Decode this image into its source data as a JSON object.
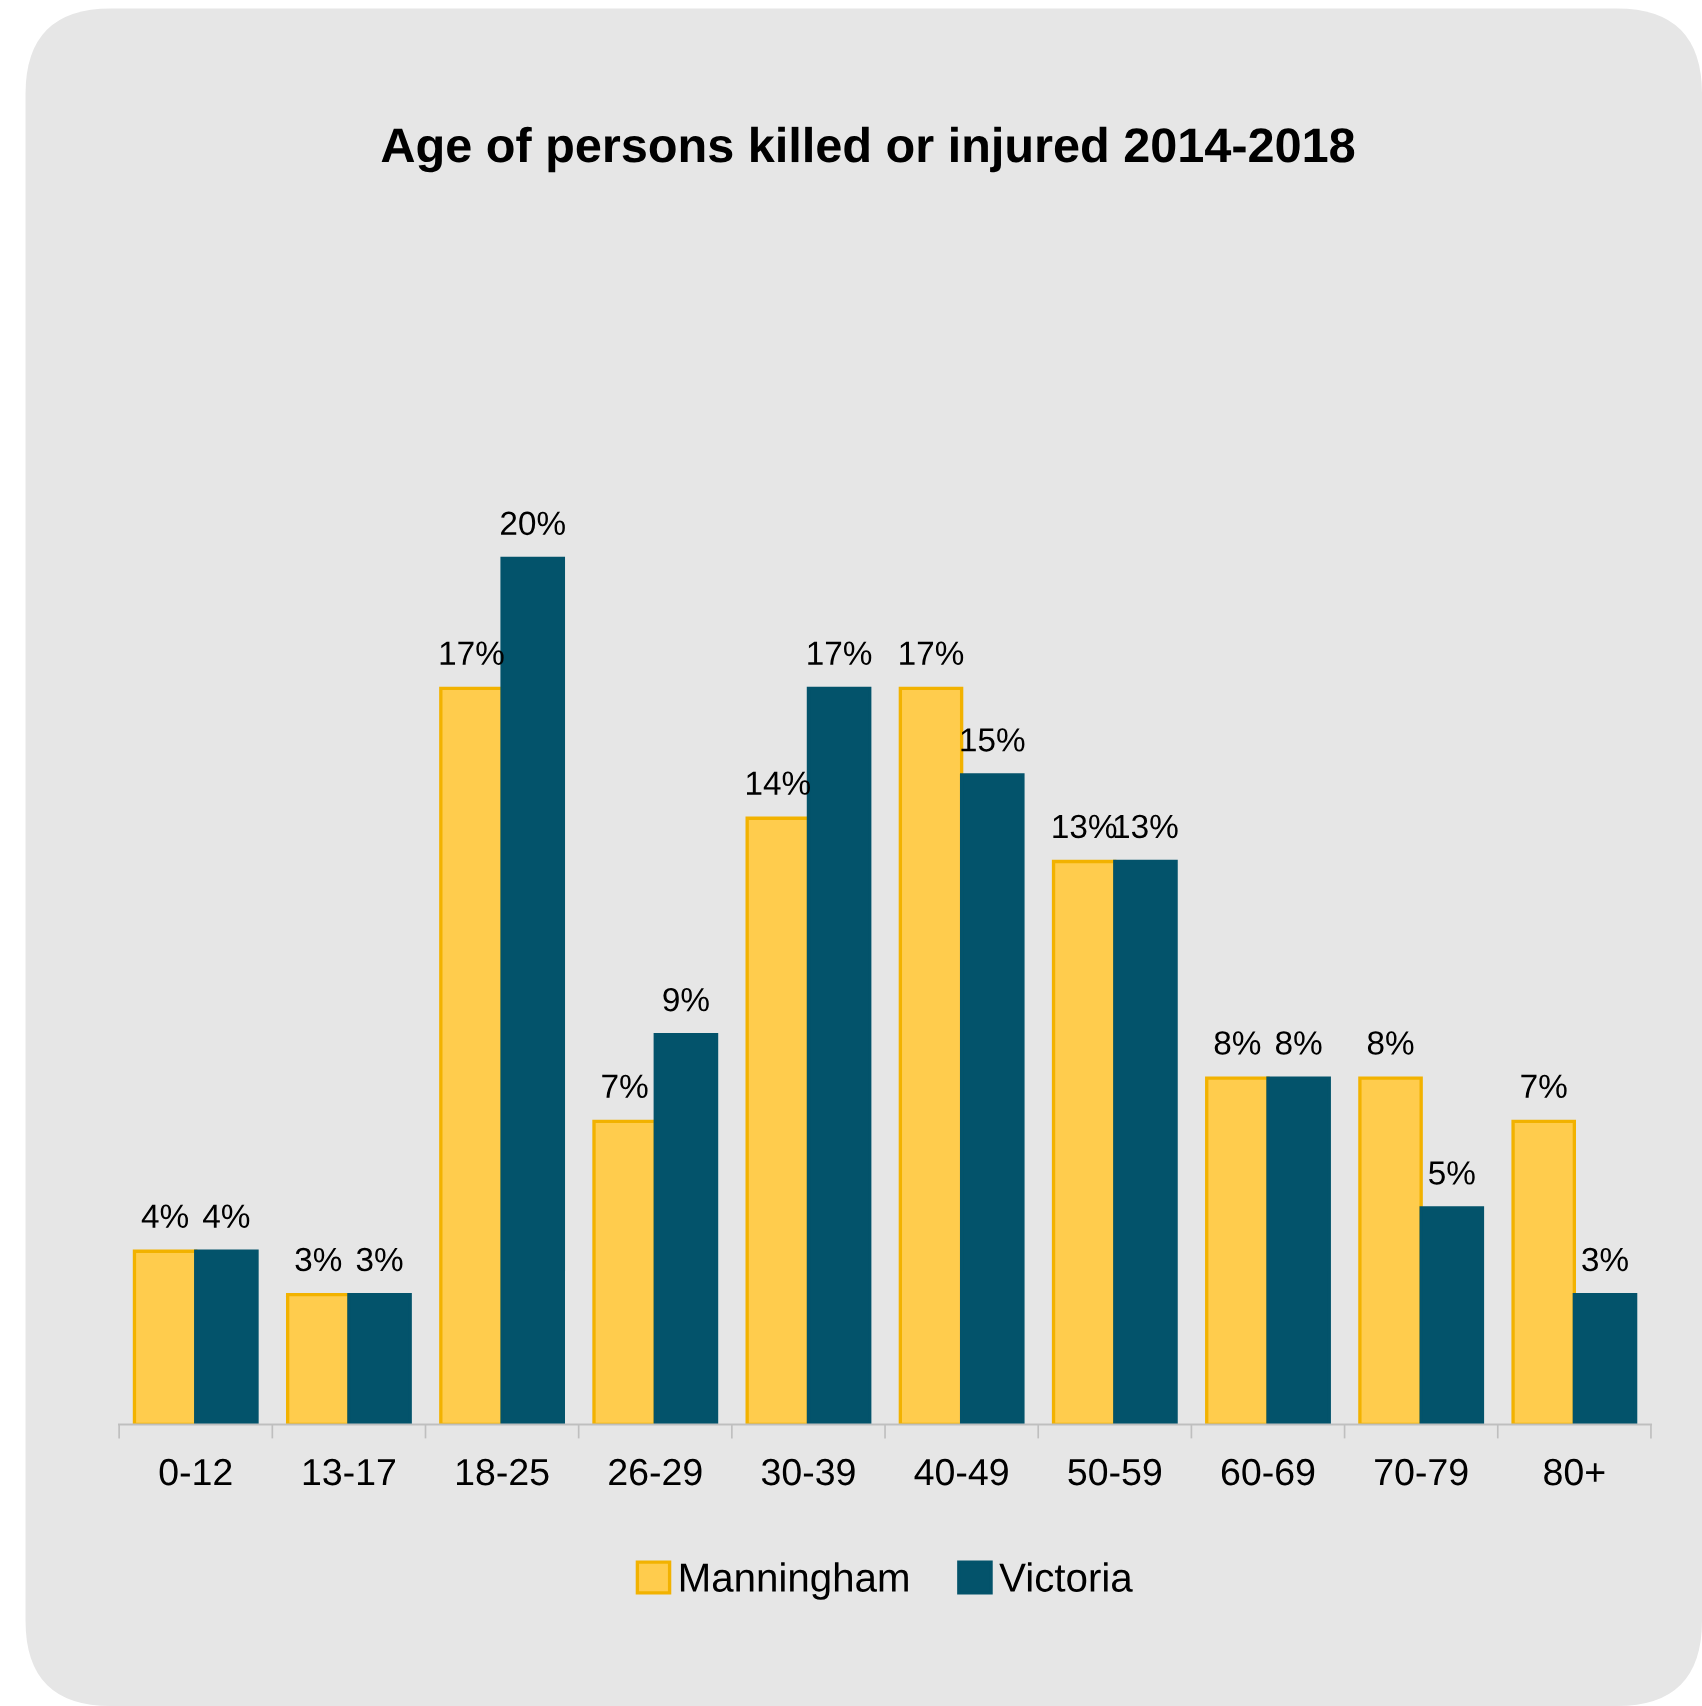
{
  "chart_data": {
    "type": "bar",
    "title": "Age of persons killed or injured 2014-2018",
    "categories": [
      "0-12",
      "13-17",
      "18-25",
      "26-29",
      "30-39",
      "40-49",
      "50-59",
      "60-69",
      "70-79",
      "80+"
    ],
    "series": [
      {
        "name": "Manningham",
        "color": "#ffcc4d",
        "values": [
          4,
          3,
          17,
          7,
          14,
          17,
          13,
          8,
          8,
          7
        ],
        "value_labels": [
          "4%",
          "3%",
          "17%",
          "7%",
          "14%",
          "17%",
          "13%",
          "8%",
          "8%",
          "7%"
        ]
      },
      {
        "name": "Victoria",
        "color": "#03536b",
        "values": [
          4,
          3,
          20,
          9,
          17,
          15,
          13,
          8,
          5,
          3
        ],
        "value_labels": [
          "4%",
          "3%",
          "20%",
          "9%",
          "17%",
          "15%",
          "13%",
          "8%",
          "5%",
          "3%"
        ]
      }
    ],
    "legend": "bottom",
    "tick_labels": "x"
  }
}
